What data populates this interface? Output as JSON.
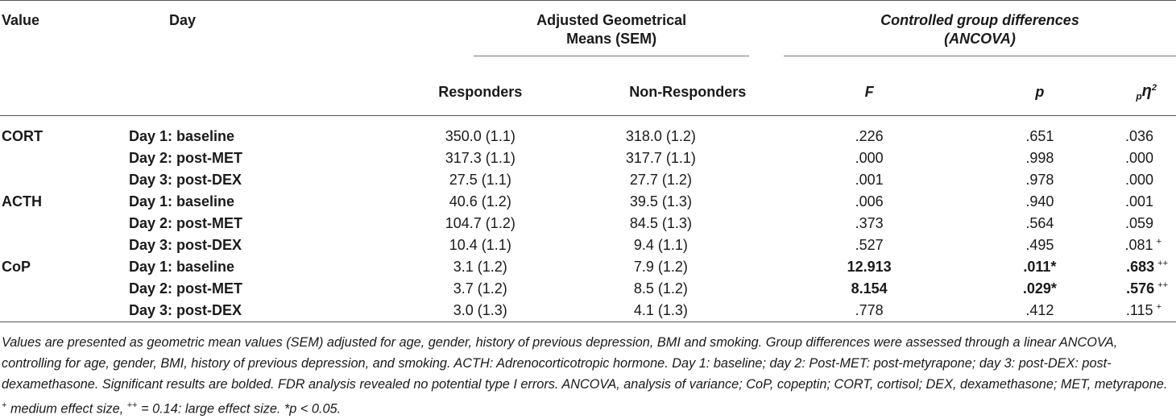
{
  "header": {
    "value": "Value",
    "day": "Day",
    "adjusted_title": "Adjusted Geometrical",
    "adjusted_title2": "Means (SEM)",
    "controlled_title": "Controlled group differences",
    "controlled_title2": "(ANCOVA)",
    "responders": "Responders",
    "non_responders": "Non-Responders",
    "f": "F",
    "p": "p",
    "eta_sub": "p",
    "eta": "η",
    "eta_sup": "2"
  },
  "rows": [
    {
      "group": "CORT",
      "day": "Day 1: baseline",
      "resp": "350.0 (1.1)",
      "non": "318.0 (1.2)",
      "f": ".226",
      "p": ".651",
      "eta": ".036",
      "eta_mark": "",
      "bold": false
    },
    {
      "group": "",
      "day": "Day 2: post-MET",
      "resp": "317.3 (1.1)",
      "non": "317.7 (1.1)",
      "f": ".000",
      "p": ".998",
      "eta": ".000",
      "eta_mark": "",
      "bold": false
    },
    {
      "group": "",
      "day": "Day 3: post-DEX",
      "resp": "27.5 (1.1)",
      "non": "27.7 (1.2)",
      "f": ".001",
      "p": ".978",
      "eta": ".000",
      "eta_mark": "",
      "bold": false
    },
    {
      "group": "ACTH",
      "day": "Day 1: baseline",
      "resp": "40.6 (1.2)",
      "non": "39.5 (1.3)",
      "f": ".006",
      "p": ".940",
      "eta": ".001",
      "eta_mark": "",
      "bold": false
    },
    {
      "group": "",
      "day": "Day 2: post-MET",
      "resp": "104.7 (1.2)",
      "non": "84.5 (1.3)",
      "f": ".373",
      "p": ".564",
      "eta": ".059",
      "eta_mark": "",
      "bold": false
    },
    {
      "group": "",
      "day": "Day 3: post-DEX",
      "resp": "10.4 (1.1)",
      "non": "9.4 (1.1)",
      "f": ".527",
      "p": ".495",
      "eta": ".081",
      "eta_mark": "+",
      "bold": false
    },
    {
      "group": "CoP",
      "day": "Day 1: baseline",
      "resp": "3.1 (1.2)",
      "non": "7.9 (1.2)",
      "f": "12.913",
      "p": ".011*",
      "eta": ".683",
      "eta_mark": "++",
      "bold": true
    },
    {
      "group": "",
      "day": "Day 2: post-MET",
      "resp": "3.7 (1.2)",
      "non": "8.5 (1.2)",
      "f": "8.154",
      "p": ".029*",
      "eta": ".576",
      "eta_mark": "++",
      "bold": true
    },
    {
      "group": "",
      "day": "Day 3: post-DEX",
      "resp": "3.0 (1.3)",
      "non": "4.1 (1.3)",
      "f": ".778",
      "p": ".412",
      "eta": ".115",
      "eta_mark": "+",
      "bold": false
    }
  ],
  "footnote": {
    "text": "Values are presented as geometric mean values (SEM) adjusted for age, gender, history of previous depression, BMI and smoking. Group differences were assessed through a linear ANCOVA, controlling for age, gender, BMI, history of previous depression, and smoking. ACTH: Adrenocorticotropic hormone. Day 1: baseline; day 2: Post-MET: post-metyrapone; day 3: post-DEX: post-dexamethasone. Significant results are bolded. FDR analysis revealed no potential type I errors. ANCOVA, analysis of variance; CoP, copeptin; CORT, cortisol; DEX, dexamethasone; MET, metyrapone.",
    "mark1": "+",
    "mark1_text": " medium effect size, ",
    "mark2": "++",
    "mark2_text": " = 0.14: large effect size. *p < 0.05."
  }
}
